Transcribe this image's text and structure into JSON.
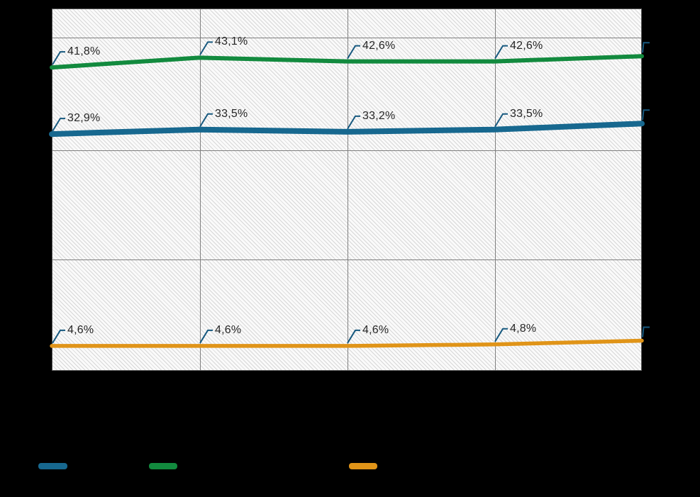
{
  "chart_data": {
    "type": "line",
    "title": "",
    "x_point_count": 5,
    "x_axis_labels_visible": false,
    "y_axis_labels_visible": false,
    "grid": true,
    "legend_position": "bottom",
    "ylim_estimated": [
      0,
      50
    ],
    "decimal_separator": ",",
    "series": [
      {
        "id": "blue-series",
        "color": "#17688F",
        "values": [
          32.9,
          33.5,
          33.2,
          33.5,
          34.3
        ],
        "visible_labels": [
          "32,9%",
          "33,5%",
          "33,2%",
          "33,5%"
        ]
      },
      {
        "id": "green-series",
        "color": "#128A3E",
        "values": [
          41.8,
          43.1,
          42.6,
          42.6,
          43.3
        ],
        "visible_labels": [
          "41,8%",
          "43,1%",
          "42,6%",
          "42,6%"
        ]
      },
      {
        "id": "orange-series",
        "color": "#E09418",
        "values": [
          4.6,
          4.6,
          4.6,
          4.8,
          5.3
        ],
        "visible_labels": [
          "4,6%",
          "4,6%",
          "4,6%",
          "4,8%"
        ]
      }
    ]
  },
  "colors": {
    "background": "#000000",
    "plot_fill": "#ffffff",
    "hatch_stripe": "#d7d7d7",
    "gridline": "#808080",
    "plot_border": "#595959",
    "data_label_text": "#262626",
    "callout_leader": "#17597F"
  },
  "legend": {
    "items": [
      {
        "id": "blue-series",
        "color": "#17688F"
      },
      {
        "id": "green-series",
        "color": "#128A3E"
      },
      {
        "id": "orange-series",
        "color": "#E09418"
      }
    ]
  }
}
